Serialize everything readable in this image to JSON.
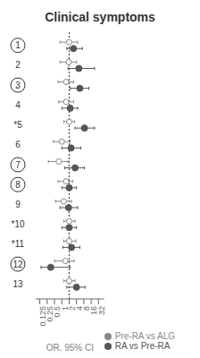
{
  "chart_data": {
    "type": "scatter",
    "orientation": "horizontal",
    "title": "Clinical symptoms",
    "x_label": "OR, 95% CI",
    "log": "x",
    "xlim": [
      0.085,
      55
    ],
    "xticks": [
      0.125,
      0.25,
      0.5,
      1,
      2,
      4,
      8,
      16,
      32
    ],
    "grid": false,
    "legend": "lower right",
    "reference_line_x": 2,
    "categories": [
      "1",
      "2",
      "3",
      "4",
      "*5",
      "6",
      "7",
      "8",
      "9",
      "*10",
      "*11",
      "12",
      "13"
    ],
    "circled": [
      true,
      false,
      true,
      false,
      false,
      false,
      true,
      true,
      false,
      false,
      false,
      true,
      false
    ],
    "series": [
      {
        "name": "Pre-RA vs ALG",
        "color": "#888888",
        "marker": "open_circle",
        "values": [
          2.0,
          1.9,
          1.5,
          1.5,
          2.0,
          1.0,
          0.75,
          1.5,
          1.2,
          2.0,
          2.0,
          1.4,
          2.0
        ],
        "ci_low": [
          0.85,
          0.85,
          0.7,
          0.75,
          1.2,
          0.45,
          0.28,
          0.7,
          0.55,
          1.2,
          1.2,
          0.5,
          1.2
        ],
        "ci_high": [
          4.5,
          4.0,
          3.0,
          3.0,
          3.3,
          2.2,
          1.8,
          2.8,
          2.5,
          3.5,
          3.8,
          3.2,
          3.5
        ]
      },
      {
        "name": "RA vs Pre-RA",
        "color": "#555555",
        "marker": "circle",
        "values": [
          3.0,
          5.0,
          5.5,
          2.2,
          8.5,
          2.4,
          3.5,
          2.0,
          1.9,
          2.0,
          2.5,
          0.35,
          4.0
        ],
        "ci_low": [
          1.6,
          1.8,
          2.2,
          1.0,
          3.5,
          1.0,
          1.3,
          1.0,
          0.85,
          1.0,
          1.1,
          0.14,
          1.6
        ],
        "ci_high": [
          7.0,
          22.0,
          13.0,
          4.5,
          22.0,
          6.0,
          8.5,
          4.0,
          4.5,
          4.0,
          5.5,
          2.2,
          9.0
        ]
      }
    ]
  }
}
